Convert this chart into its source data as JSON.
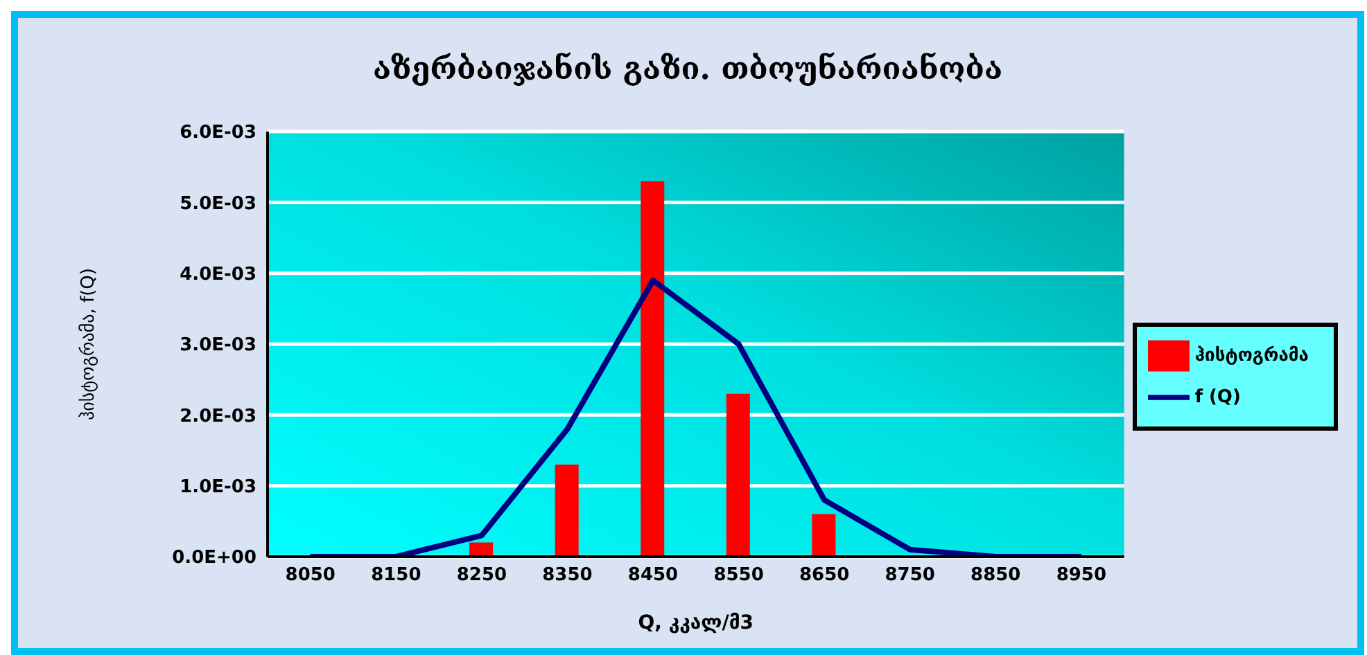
{
  "chart_data": {
    "type": "bar",
    "title": "აზერბაიჯანის გაზი. თბოუნარიანობა",
    "xlabel": "Q, კკალ/მ3",
    "ylabel": "ჰისტოგრამა, f(Q)",
    "categories": [
      "8050",
      "8150",
      "8250",
      "8350",
      "8450",
      "8550",
      "8650",
      "8750",
      "8850",
      "8950"
    ],
    "series": [
      {
        "name": "ჰისტოგრამა",
        "color": "#ff0000",
        "values": [
          0,
          0,
          0.0002,
          0.0013,
          0.0053,
          0.0023,
          0.0006,
          0,
          0,
          0
        ]
      },
      {
        "name": "f (Q)",
        "type": "line",
        "color": "#000080",
        "values": [
          0,
          0,
          0.0003,
          0.0018,
          0.0039,
          0.003,
          0.0008,
          0.0001,
          0,
          0
        ]
      }
    ],
    "ylim": [
      0,
      0.006
    ],
    "yticks": [
      {
        "value": 0,
        "label": "0.0E+00"
      },
      {
        "value": 0.001,
        "label": "1.0E-03"
      },
      {
        "value": 0.002,
        "label": "2.0E-03"
      },
      {
        "value": 0.003,
        "label": "3.0E-03"
      },
      {
        "value": 0.004,
        "label": "4.0E-03"
      },
      {
        "value": 0.005,
        "label": "5.0E-03"
      },
      {
        "value": 0.006,
        "label": "6.0E-03"
      }
    ],
    "grid": "y",
    "legend": "right",
    "marker": "none"
  }
}
